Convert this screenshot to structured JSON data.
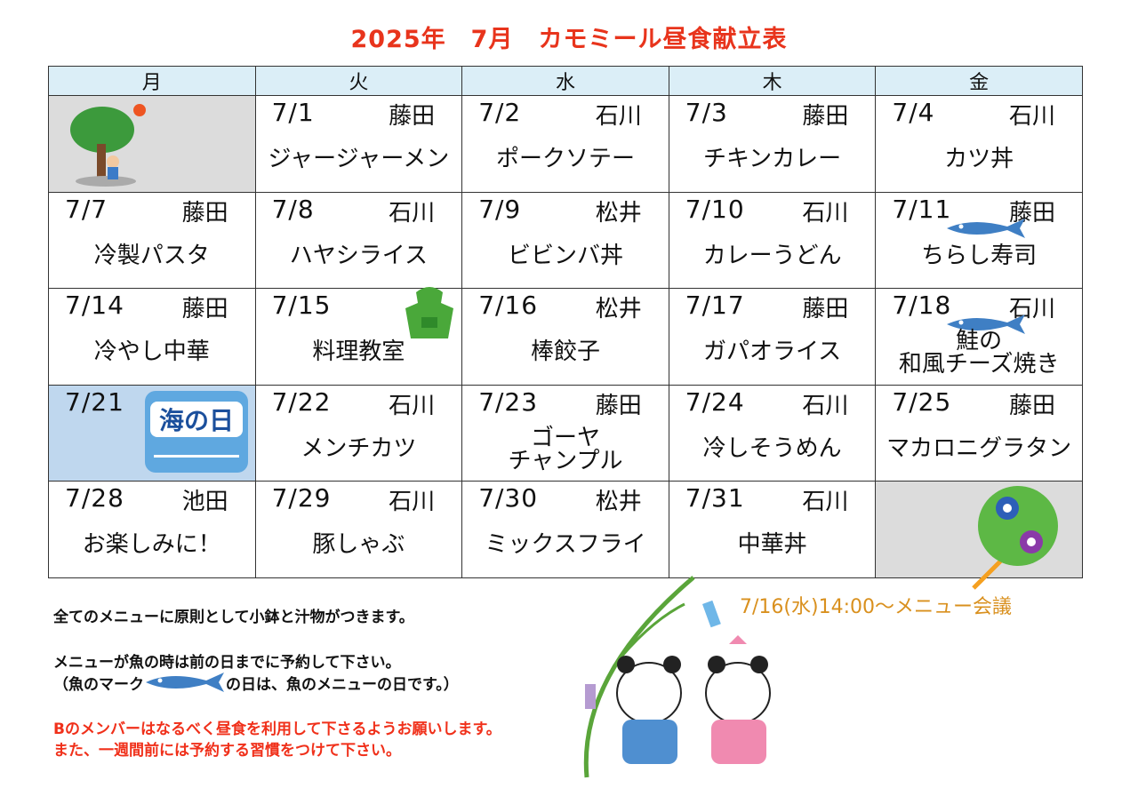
{
  "title": {
    "year": "2025年",
    "month": "7月",
    "name": "カモミール昼食献立表"
  },
  "weekdays": [
    "月",
    "火",
    "水",
    "木",
    "金"
  ],
  "weeks": [
    [
      {
        "empty": true,
        "illustration": "tree-summer"
      },
      {
        "date": "7/1",
        "staff": "藤田",
        "menu": "ジャージャーメン"
      },
      {
        "date": "7/2",
        "staff": "石川",
        "menu": "ポークソテー"
      },
      {
        "date": "7/3",
        "staff": "藤田",
        "menu": "チキンカレー"
      },
      {
        "date": "7/4",
        "staff": "石川",
        "menu": "カツ丼"
      }
    ],
    [
      {
        "date": "7/7",
        "staff": "藤田",
        "menu": "冷製パスタ"
      },
      {
        "date": "7/8",
        "staff": "石川",
        "menu": "ハヤシライス"
      },
      {
        "date": "7/9",
        "staff": "松井",
        "menu": "ビビンバ丼"
      },
      {
        "date": "7/10",
        "staff": "石川",
        "menu": "カレーうどん"
      },
      {
        "date": "7/11",
        "staff": "藤田",
        "menu": "ちらし寿司",
        "fish": true
      }
    ],
    [
      {
        "date": "7/14",
        "staff": "藤田",
        "menu": "冷やし中華"
      },
      {
        "date": "7/15",
        "staff": "",
        "menu": "料理教室",
        "illustration": "apron"
      },
      {
        "date": "7/16",
        "staff": "松井",
        "menu": "棒餃子"
      },
      {
        "date": "7/17",
        "staff": "藤田",
        "menu": "ガパオライス"
      },
      {
        "date": "7/18",
        "staff": "石川",
        "menu": "鮭の\n和風チーズ焼き",
        "fish": true
      }
    ],
    [
      {
        "date": "7/21",
        "staff": "",
        "menu": "",
        "holiday": true,
        "holiday_label": "海の日"
      },
      {
        "date": "7/22",
        "staff": "石川",
        "menu": "メンチカツ"
      },
      {
        "date": "7/23",
        "staff": "藤田",
        "menu": "ゴーヤ\nチャンプル"
      },
      {
        "date": "7/24",
        "staff": "石川",
        "menu": "冷しそうめん"
      },
      {
        "date": "7/25",
        "staff": "藤田",
        "menu": "マカロニグラタン"
      }
    ],
    [
      {
        "date": "7/28",
        "staff": "池田",
        "menu": "お楽しみに！"
      },
      {
        "date": "7/29",
        "staff": "石川",
        "menu": "豚しゃぶ"
      },
      {
        "date": "7/30",
        "staff": "松井",
        "menu": "ミックスフライ"
      },
      {
        "date": "7/31",
        "staff": "石川",
        "menu": "中華丼"
      },
      {
        "empty": true,
        "illustration": "uchiwa-fan"
      }
    ]
  ],
  "notes": {
    "line1": "全てのメニューに原則として小鉢と汁物がつきます。",
    "line2": "メニューが魚の時は前の日までに予約して下さい。",
    "line3a": "（魚のマーク",
    "line3b": "の日は、魚のメニューの日です。）",
    "red1": "Bのメンバーはなるべく昼食を利用して下さるようお願いします。",
    "red2": "また、一週間前には予約する習慣をつけて下さい。"
  },
  "meeting": "7/16(水)14:00～メニュー会議",
  "colors": {
    "title": "#e8341c",
    "header_bg": "#dbeef7",
    "fish": "#3f7fc4",
    "meeting": "#d9901e",
    "empty_cell": "#dcdcdc"
  }
}
